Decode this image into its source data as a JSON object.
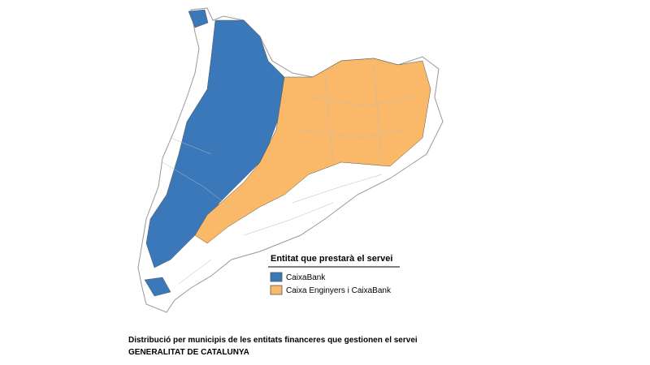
{
  "legend": {
    "title": "Entitat que prestarà el servei",
    "items": [
      {
        "label": "CaixaBank",
        "color": "#3b78ba"
      },
      {
        "label": "Caixa Enginyers i CaixaBank",
        "color": "#f9b968"
      }
    ]
  },
  "caption": {
    "line1": "Distribució per municipis de les entitats financeres que gestionen el servei",
    "line2": "GENERALITAT DE CATALUNYA"
  }
}
